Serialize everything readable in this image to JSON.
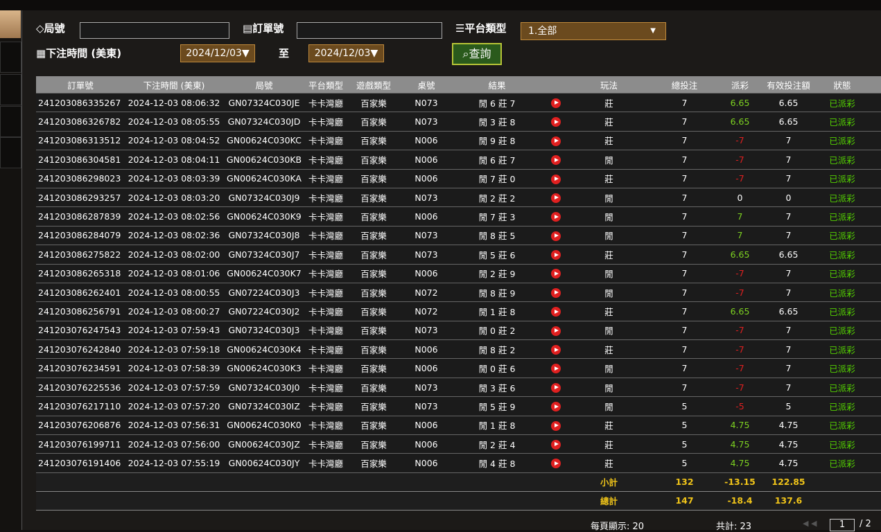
{
  "filters": {
    "game_no_label": "局號",
    "order_no_label": "訂單號",
    "platform_label": "平台類型",
    "platform_value": "1.全部",
    "time_label": "下注時間 (美東)",
    "date_from": "2024/12/03▼",
    "to_label": "至",
    "date_to": "2024/12/03▼",
    "search_button": "查詢"
  },
  "table": {
    "headers": [
      "訂單號",
      "下注時間 (美東)",
      "局號",
      "平台類型",
      "遊戲類型",
      "桌號",
      "結果",
      "玩法",
      "總投注",
      "派彩",
      "有效投注額",
      "狀態"
    ],
    "rows": [
      [
        "241203086335267",
        "2024-12-03 08:06:32",
        "GN07324C030JE",
        "卡卡灣廳",
        "百家樂",
        "N073",
        "閒 6 莊 7",
        "莊",
        "7",
        "6.65",
        "6.65",
        "已派彩"
      ],
      [
        "241203086326782",
        "2024-12-03 08:05:55",
        "GN07324C030JD",
        "卡卡灣廳",
        "百家樂",
        "N073",
        "閒 3 莊 8",
        "莊",
        "7",
        "6.65",
        "6.65",
        "已派彩"
      ],
      [
        "241203086313512",
        "2024-12-03 08:04:52",
        "GN00624C030KC",
        "卡卡灣廳",
        "百家樂",
        "N006",
        "閒 9 莊 8",
        "莊",
        "7",
        "-7",
        "7",
        "已派彩"
      ],
      [
        "241203086304581",
        "2024-12-03 08:04:11",
        "GN00624C030KB",
        "卡卡灣廳",
        "百家樂",
        "N006",
        "閒 6 莊 7",
        "閒",
        "7",
        "-7",
        "7",
        "已派彩"
      ],
      [
        "241203086298023",
        "2024-12-03 08:03:39",
        "GN00624C030KA",
        "卡卡灣廳",
        "百家樂",
        "N006",
        "閒 7 莊 0",
        "莊",
        "7",
        "-7",
        "7",
        "已派彩"
      ],
      [
        "241203086293257",
        "2024-12-03 08:03:20",
        "GN07324C030J9",
        "卡卡灣廳",
        "百家樂",
        "N073",
        "閒 2 莊 2",
        "閒",
        "7",
        "0",
        "0",
        "已派彩"
      ],
      [
        "241203086287839",
        "2024-12-03 08:02:56",
        "GN00624C030K9",
        "卡卡灣廳",
        "百家樂",
        "N006",
        "閒 7 莊 3",
        "閒",
        "7",
        "7",
        "7",
        "已派彩"
      ],
      [
        "241203086284079",
        "2024-12-03 08:02:36",
        "GN07324C030J8",
        "卡卡灣廳",
        "百家樂",
        "N073",
        "閒 8 莊 5",
        "閒",
        "7",
        "7",
        "7",
        "已派彩"
      ],
      [
        "241203086275822",
        "2024-12-03 08:02:00",
        "GN07324C030J7",
        "卡卡灣廳",
        "百家樂",
        "N073",
        "閒 5 莊 6",
        "莊",
        "7",
        "6.65",
        "6.65",
        "已派彩"
      ],
      [
        "241203086265318",
        "2024-12-03 08:01:06",
        "GN00624C030K7",
        "卡卡灣廳",
        "百家樂",
        "N006",
        "閒 2 莊 9",
        "閒",
        "7",
        "-7",
        "7",
        "已派彩"
      ],
      [
        "241203086262401",
        "2024-12-03 08:00:55",
        "GN07224C030J3",
        "卡卡灣廳",
        "百家樂",
        "N072",
        "閒 8 莊 9",
        "閒",
        "7",
        "-7",
        "7",
        "已派彩"
      ],
      [
        "241203086256791",
        "2024-12-03 08:00:27",
        "GN07224C030J2",
        "卡卡灣廳",
        "百家樂",
        "N072",
        "閒 1 莊 8",
        "莊",
        "7",
        "6.65",
        "6.65",
        "已派彩"
      ],
      [
        "241203076247543",
        "2024-12-03 07:59:43",
        "GN07324C030J3",
        "卡卡灣廳",
        "百家樂",
        "N073",
        "閒 0 莊 2",
        "閒",
        "7",
        "-7",
        "7",
        "已派彩"
      ],
      [
        "241203076242840",
        "2024-12-03 07:59:18",
        "GN00624C030K4",
        "卡卡灣廳",
        "百家樂",
        "N006",
        "閒 8 莊 2",
        "莊",
        "7",
        "-7",
        "7",
        "已派彩"
      ],
      [
        "241203076234591",
        "2024-12-03 07:58:39",
        "GN00624C030K3",
        "卡卡灣廳",
        "百家樂",
        "N006",
        "閒 0 莊 6",
        "閒",
        "7",
        "-7",
        "7",
        "已派彩"
      ],
      [
        "241203076225536",
        "2024-12-03 07:57:59",
        "GN07324C030J0",
        "卡卡灣廳",
        "百家樂",
        "N073",
        "閒 3 莊 6",
        "閒",
        "7",
        "-7",
        "7",
        "已派彩"
      ],
      [
        "241203076217110",
        "2024-12-03 07:57:20",
        "GN07324C030IZ",
        "卡卡灣廳",
        "百家樂",
        "N073",
        "閒 5 莊 9",
        "閒",
        "5",
        "-5",
        "5",
        "已派彩"
      ],
      [
        "241203076206876",
        "2024-12-03 07:56:31",
        "GN00624C030K0",
        "卡卡灣廳",
        "百家樂",
        "N006",
        "閒 1 莊 8",
        "莊",
        "5",
        "4.75",
        "4.75",
        "已派彩"
      ],
      [
        "241203076199711",
        "2024-12-03 07:56:00",
        "GN00624C030JZ",
        "卡卡灣廳",
        "百家樂",
        "N006",
        "閒 2 莊 4",
        "莊",
        "5",
        "4.75",
        "4.75",
        "已派彩"
      ],
      [
        "241203076191406",
        "2024-12-03 07:55:19",
        "GN00624C030JY",
        "卡卡灣廳",
        "百家樂",
        "N006",
        "閒 4 莊 8",
        "莊",
        "5",
        "4.75",
        "4.75",
        "已派彩"
      ]
    ],
    "summary": [
      [
        "小計",
        "132",
        "-13.15",
        "122.85"
      ],
      [
        "總計",
        "147",
        "-18.4",
        "137.6"
      ]
    ]
  },
  "footer": {
    "per_page": "每頁顯示: 20",
    "total": "共計: 23",
    "page": "1",
    "page_of": "/ 2"
  }
}
